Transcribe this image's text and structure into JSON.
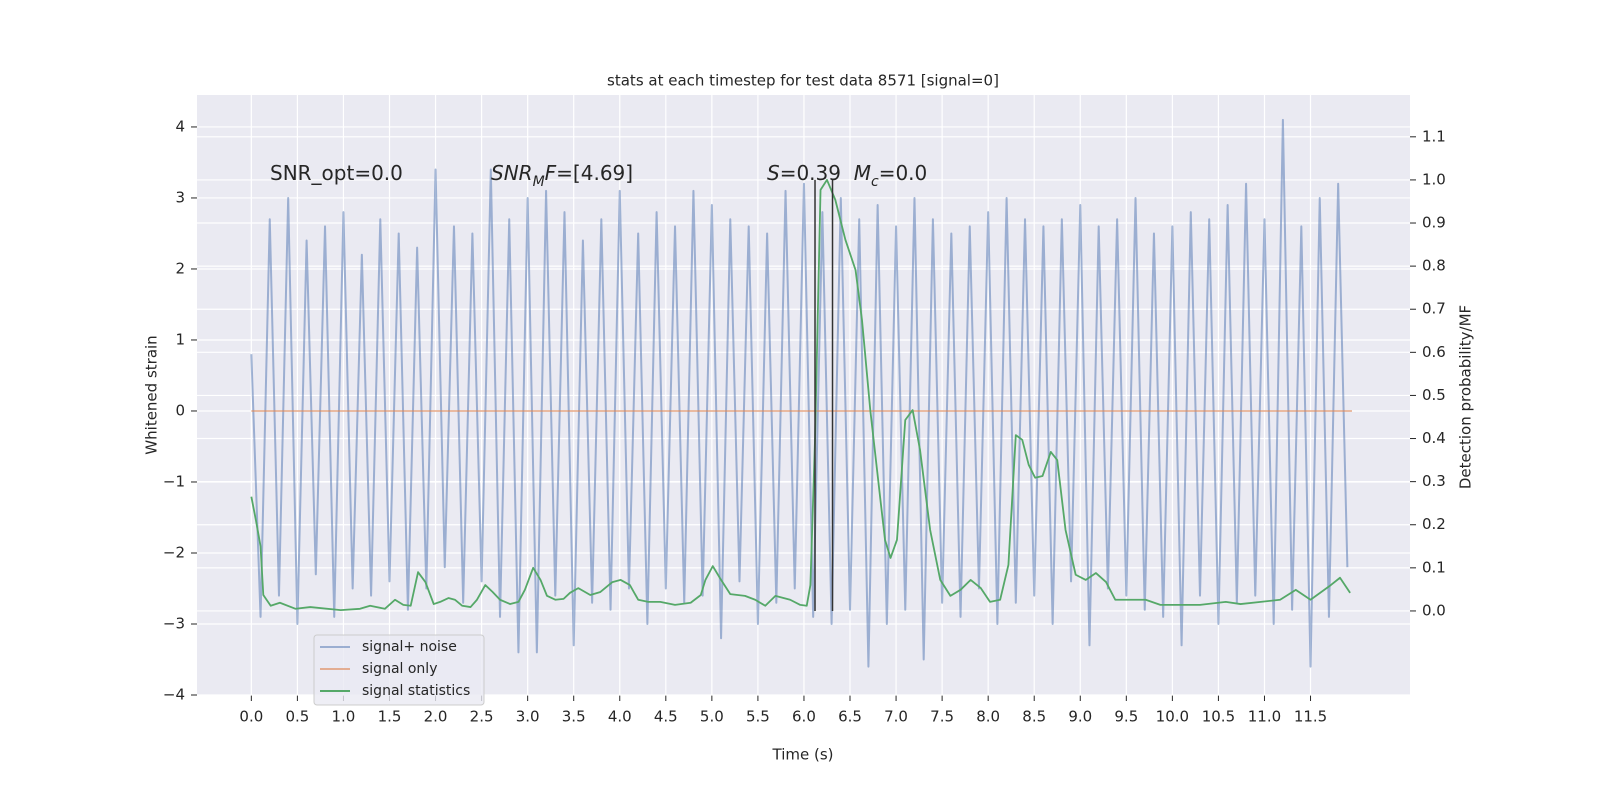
{
  "chart_data": {
    "type": "line",
    "title": "stats at each timestep for test data 8571 [signal=0]",
    "xlabel": "Time (s)",
    "ylabel": "Whitened strain",
    "y2label": "Detection probability/MF",
    "background": "#eaeaf2",
    "grid": true,
    "legend": "lower left",
    "xlim": [
      -0.59,
      12.58
    ],
    "ylim": [
      -4.0,
      4.45
    ],
    "y2lim": [
      -0.195,
      1.197
    ],
    "xticks": [
      {
        "value": 0,
        "label": "0.0"
      },
      0.5,
      {
        "value": 1,
        "label": "1.0"
      },
      1.5,
      {
        "value": 2,
        "label": "2.0"
      },
      2.5,
      {
        "value": 3,
        "label": "3.0"
      },
      3.5,
      {
        "value": 4,
        "label": "4.0"
      },
      4.5,
      {
        "value": 5,
        "label": "5.0"
      },
      5.5,
      {
        "value": 6,
        "label": "6.0"
      },
      6.5,
      {
        "value": 7,
        "label": "7.0"
      },
      7.5,
      {
        "value": 8,
        "label": "8.0"
      },
      8.5,
      {
        "value": 9,
        "label": "9.0"
      },
      9.5,
      {
        "value": 10,
        "label": "10.0"
      },
      10.5,
      {
        "value": 11,
        "label": "11.0"
      },
      11.5
    ],
    "yticks": [
      {
        "value": -4,
        "label": "−4"
      },
      {
        "value": -3,
        "label": "−3"
      },
      {
        "value": -2,
        "label": "−2"
      },
      {
        "value": -1,
        "label": "−1"
      },
      0,
      1,
      2,
      3,
      4
    ],
    "y2ticks": [
      {
        "value": 0,
        "label": "0.0"
      },
      0.1,
      0.2,
      0.3,
      0.4,
      0.5,
      0.6,
      0.7,
      0.8,
      0.9,
      {
        "value": 1,
        "label": "1.0"
      },
      1.1
    ],
    "annotations": [
      [
        {
          "text": "SNR_opt=0.0",
          "style": "normal"
        }
      ],
      [
        {
          "text": "SNR",
          "style": "italic"
        },
        {
          "text": "M",
          "style": "sub"
        },
        {
          "text": "F",
          "style": "italic"
        },
        {
          "text": "=[4.69]",
          "style": "normal"
        }
      ],
      [
        {
          "text": "S",
          "style": "italic"
        },
        {
          "text": "=0.39  ",
          "style": "normal"
        },
        {
          "text": "M",
          "style": "italic"
        },
        {
          "text": "c",
          "style": "sub"
        },
        {
          "text": "=0.0",
          "style": "normal"
        }
      ]
    ],
    "vlines": {
      "x": [
        6.12,
        6.31
      ],
      "y2min": 0,
      "y2max": 1,
      "color": "#333333"
    },
    "series": [
      {
        "name": "signal+ noise",
        "color": "#4c72b0",
        "alpha": 0.5,
        "axis": "y",
        "x": [
          0.0,
          0.1,
          0.2,
          0.3,
          0.4,
          0.5,
          0.6,
          0.7,
          0.8,
          0.9,
          1.0,
          1.1,
          1.2,
          1.3,
          1.4,
          1.5,
          1.6,
          1.7,
          1.8,
          1.9,
          2.0,
          2.1,
          2.2,
          2.3,
          2.4,
          2.5,
          2.6,
          2.7,
          2.8,
          2.9,
          3.0,
          3.1,
          3.2,
          3.3,
          3.4,
          3.5,
          3.6,
          3.7,
          3.8,
          3.9,
          4.0,
          4.1,
          4.2,
          4.3,
          4.4,
          4.5,
          4.6,
          4.7,
          4.8,
          4.9,
          5.0,
          5.1,
          5.2,
          5.3,
          5.4,
          5.5,
          5.6,
          5.7,
          5.8,
          5.9,
          6.0,
          6.1,
          6.2,
          6.3,
          6.4,
          6.5,
          6.6,
          6.7,
          6.8,
          6.9,
          7.0,
          7.1,
          7.2,
          7.3,
          7.4,
          7.5,
          7.6,
          7.7,
          7.8,
          7.9,
          8.0,
          8.1,
          8.2,
          8.3,
          8.4,
          8.5,
          8.6,
          8.7,
          8.8,
          8.9,
          9.0,
          9.1,
          9.2,
          9.3,
          9.4,
          9.5,
          9.6,
          9.7,
          9.8,
          9.9,
          10.0,
          10.1,
          10.2,
          10.3,
          10.4,
          10.5,
          10.6,
          10.7,
          10.8,
          10.9,
          11.0,
          11.1,
          11.2,
          11.3,
          11.4,
          11.5,
          11.6,
          11.7,
          11.8,
          11.9
        ],
        "values": [
          0.8,
          -2.9,
          2.7,
          -2.6,
          3.0,
          -3.0,
          2.4,
          -2.3,
          2.6,
          -2.9,
          2.8,
          -2.5,
          2.2,
          -2.6,
          2.7,
          -2.4,
          2.5,
          -2.8,
          2.3,
          -2.5,
          3.4,
          -2.2,
          2.6,
          -2.7,
          2.5,
          -2.4,
          3.4,
          -2.9,
          2.7,
          -3.4,
          3.0,
          -3.4,
          3.1,
          -2.6,
          2.8,
          -3.3,
          2.4,
          -2.7,
          2.7,
          -2.8,
          3.1,
          -2.5,
          2.5,
          -3.0,
          2.8,
          -2.5,
          2.6,
          -2.7,
          3.1,
          -2.6,
          2.9,
          -3.2,
          2.7,
          -2.4,
          2.6,
          -3.0,
          2.5,
          -2.7,
          3.1,
          -2.5,
          3.2,
          -2.9,
          2.8,
          -3.0,
          3.0,
          -2.8,
          2.7,
          -3.6,
          2.9,
          -3.0,
          2.6,
          -2.8,
          3.0,
          -3.5,
          2.7,
          -2.7,
          2.5,
          -2.9,
          2.6,
          -2.5,
          2.8,
          -3.0,
          3.0,
          -2.7,
          2.7,
          -2.6,
          2.6,
          -3.0,
          2.7,
          -2.4,
          2.9,
          -3.3,
          2.6,
          -2.5,
          2.7,
          -2.6,
          3.0,
          -2.8,
          2.5,
          -2.9,
          2.6,
          -3.3,
          2.8,
          -2.6,
          2.7,
          -3.0,
          2.9,
          -2.7,
          3.2,
          -2.6,
          2.7,
          -3.0,
          4.1,
          -2.8,
          2.6,
          -3.6,
          3.0,
          -2.9,
          3.2,
          -2.2
        ]
      },
      {
        "name": "signal only",
        "color": "#dd8452",
        "alpha": 0.6,
        "axis": "y",
        "x": [
          0.0,
          11.95
        ],
        "values": [
          0,
          0
        ]
      },
      {
        "name": "signal statistics",
        "color": "#55a868",
        "alpha": 1,
        "axis": "y2",
        "x": [
          0.0,
          0.05,
          0.1,
          0.13,
          0.21,
          0.31,
          0.48,
          0.64,
          0.97,
          1.18,
          1.29,
          1.45,
          1.56,
          1.65,
          1.73,
          1.81,
          1.89,
          1.98,
          2.05,
          2.14,
          2.21,
          2.29,
          2.38,
          2.45,
          2.54,
          2.62,
          2.7,
          2.81,
          2.9,
          2.97,
          3.06,
          3.14,
          3.21,
          3.3,
          3.39,
          3.46,
          3.55,
          3.68,
          3.79,
          3.92,
          4.01,
          4.11,
          4.2,
          4.31,
          4.44,
          4.6,
          4.77,
          4.88,
          4.93,
          5.01,
          5.1,
          5.2,
          5.36,
          5.47,
          5.58,
          5.69,
          5.85,
          5.96,
          6.03,
          6.07,
          6.12,
          6.18,
          6.25,
          6.34,
          6.45,
          6.56,
          6.63,
          6.72,
          6.83,
          6.88,
          6.94,
          7.01,
          7.1,
          7.18,
          7.26,
          7.37,
          7.48,
          7.59,
          7.7,
          7.81,
          7.92,
          8.02,
          8.13,
          8.22,
          8.3,
          8.37,
          8.44,
          8.51,
          8.59,
          8.68,
          8.75,
          8.84,
          8.95,
          9.06,
          9.17,
          9.28,
          9.38,
          9.54,
          9.71,
          9.87,
          10.3,
          10.58,
          10.74,
          10.96,
          11.17,
          11.34,
          11.5,
          11.72,
          11.82,
          11.93
        ],
        "values": [
          0.265,
          0.21,
          0.15,
          0.037,
          0.012,
          0.019,
          0.005,
          0.009,
          0.002,
          0.005,
          0.012,
          0.005,
          0.026,
          0.014,
          0.012,
          0.09,
          0.067,
          0.016,
          0.021,
          0.03,
          0.026,
          0.012,
          0.009,
          0.026,
          0.06,
          0.044,
          0.026,
          0.016,
          0.021,
          0.049,
          0.1,
          0.072,
          0.035,
          0.026,
          0.028,
          0.042,
          0.053,
          0.037,
          0.044,
          0.067,
          0.072,
          0.06,
          0.026,
          0.021,
          0.021,
          0.014,
          0.019,
          0.037,
          0.072,
          0.104,
          0.072,
          0.039,
          0.035,
          0.026,
          0.012,
          0.035,
          0.026,
          0.014,
          0.012,
          0.06,
          0.397,
          0.977,
          1.0,
          0.954,
          0.861,
          0.791,
          0.675,
          0.466,
          0.258,
          0.165,
          0.123,
          0.165,
          0.443,
          0.466,
          0.374,
          0.188,
          0.072,
          0.035,
          0.049,
          0.072,
          0.053,
          0.021,
          0.026,
          0.107,
          0.408,
          0.397,
          0.339,
          0.309,
          0.313,
          0.369,
          0.35,
          0.188,
          0.084,
          0.072,
          0.088,
          0.067,
          0.026,
          0.026,
          0.026,
          0.014,
          0.014,
          0.021,
          0.016,
          0.021,
          0.026,
          0.049,
          0.026,
          0.06,
          0.077,
          0.042
        ]
      }
    ]
  }
}
